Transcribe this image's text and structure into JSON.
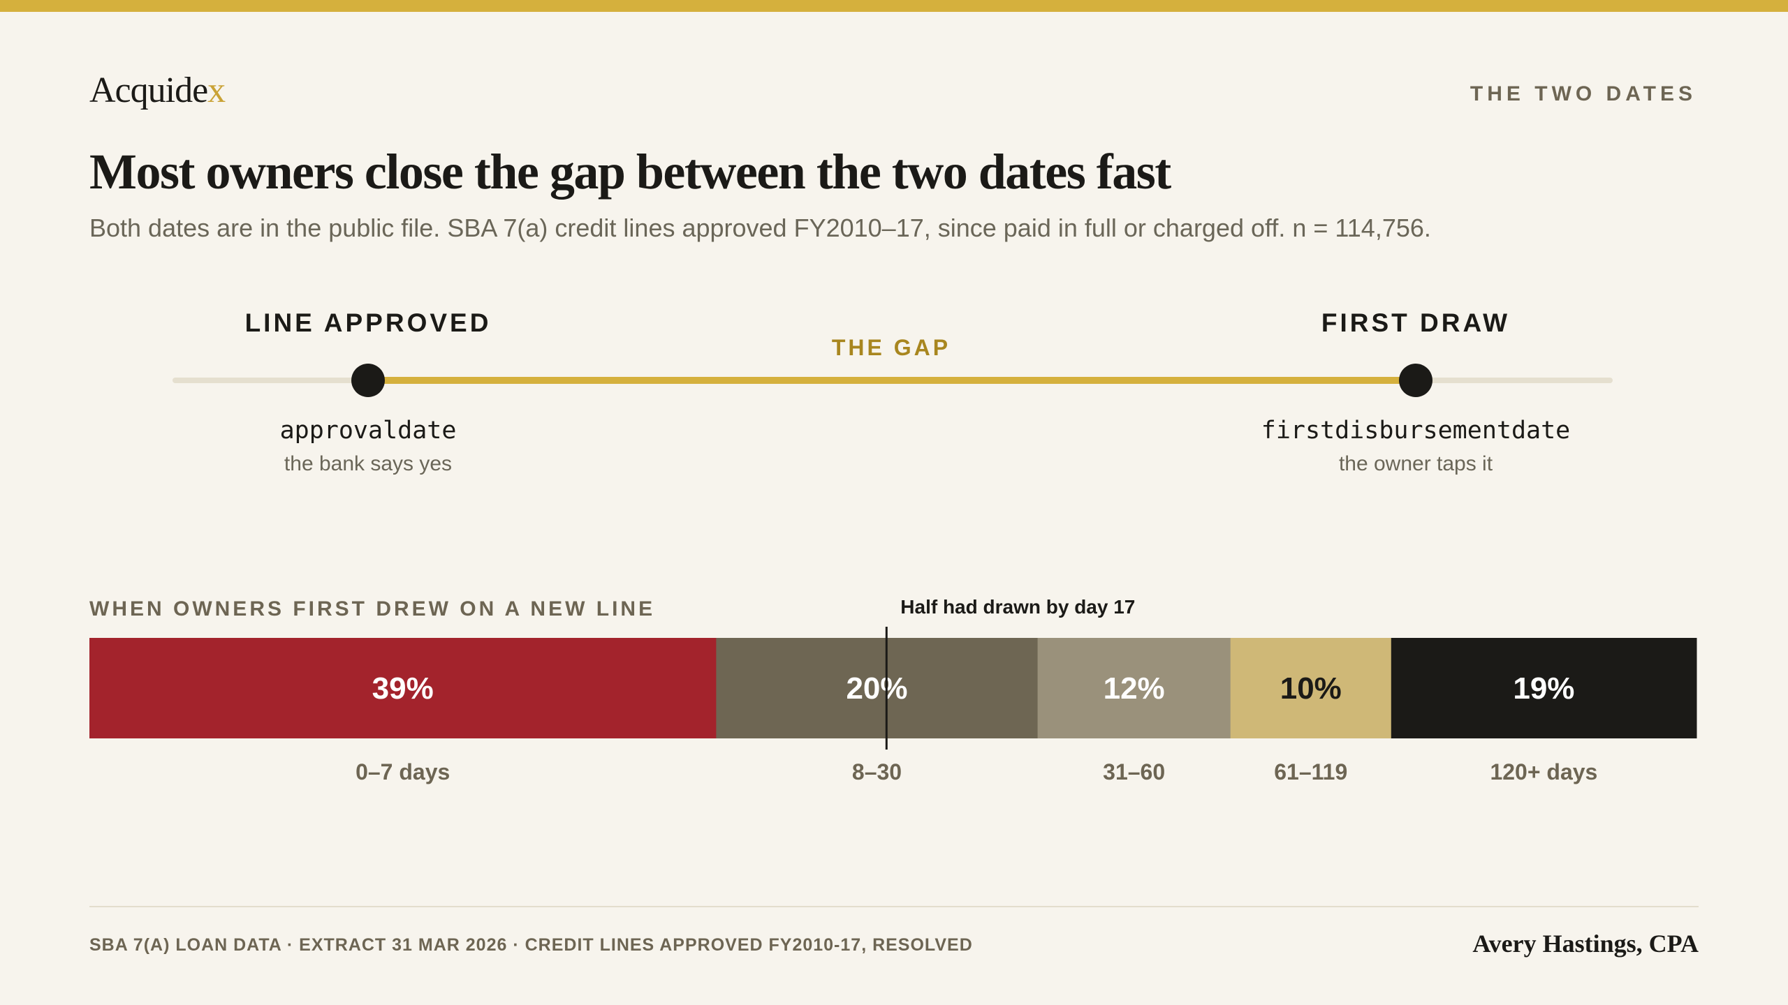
{
  "brand": {
    "logo_main": "Acquide",
    "logo_accent": "x"
  },
  "section_tag": "THE TWO DATES",
  "headline": "Most owners close the gap between the two dates fast",
  "subhead": "Both dates are in the public file. SBA 7(a) credit lines approved FY2010–17, since paid in full or charged off. n = 114,756.",
  "timeline": {
    "start": {
      "title": "LINE APPROVED",
      "field": "approvaldate",
      "description": "the bank says yes"
    },
    "gap_label": "THE GAP",
    "end": {
      "title": "FIRST DRAW",
      "field": "firstdisbursementdate",
      "description": "the owner taps it"
    }
  },
  "chart_data": {
    "type": "bar",
    "orientation": "stacked-horizontal",
    "title": "WHEN OWNERS FIRST DREW ON A NEW LINE",
    "categories": [
      "0–7 days",
      "8–30",
      "31–60",
      "61–119",
      "120+ days"
    ],
    "values": [
      39,
      20,
      12,
      10,
      19
    ],
    "value_labels": [
      "39%",
      "20%",
      "12%",
      "10%",
      "19%"
    ],
    "unit": "%",
    "colors": [
      "#a3232c",
      "#6e6653",
      "#9a917b",
      "#cfb877",
      "#1b1a17"
    ],
    "label_colors": [
      "#ffffff",
      "#ffffff",
      "#ffffff",
      "#1b1a17",
      "#ffffff"
    ],
    "annotation": {
      "text": "Half had drawn by day 17",
      "position_percent": 49.6
    }
  },
  "footer": {
    "source": "SBA 7(A) LOAN DATA · EXTRACT 31 MAR 2026 · CREDIT LINES APPROVED FY2010-17, RESOLVED",
    "author": "Avery Hastings, CPA"
  },
  "colors": {
    "accent": "#d5b03d",
    "background": "#f7f4ed",
    "ink": "#1b1a17"
  }
}
